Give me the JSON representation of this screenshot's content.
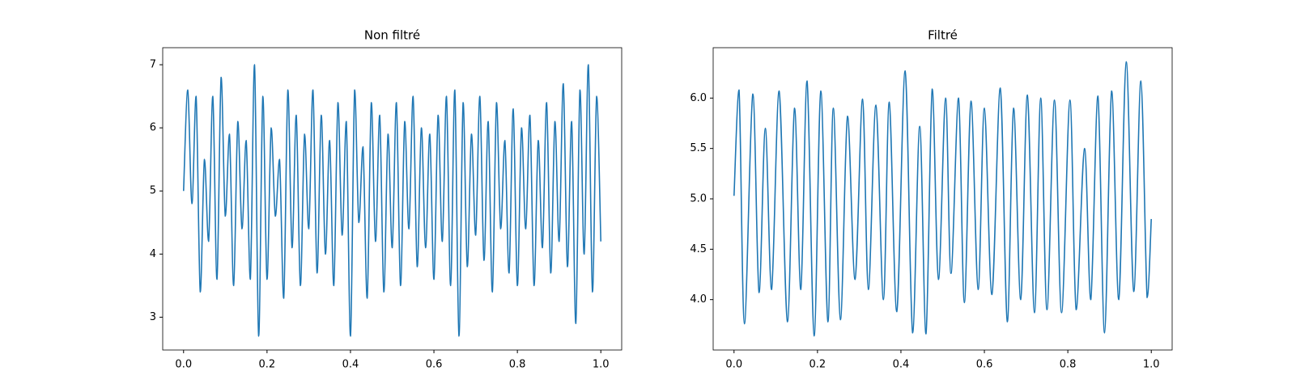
{
  "chart_data": [
    {
      "type": "line",
      "title": "Non filtré",
      "color": "#1f77b4",
      "x": [
        0,
        0.01,
        0.02,
        0.03,
        0.04,
        0.05,
        0.06,
        0.07,
        0.08,
        0.09,
        0.1,
        0.11,
        0.12,
        0.13,
        0.14,
        0.15,
        0.16,
        0.17,
        0.18,
        0.19,
        0.2,
        0.21,
        0.22,
        0.23,
        0.24,
        0.25,
        0.26,
        0.27,
        0.28,
        0.29,
        0.3,
        0.31,
        0.32,
        0.33,
        0.34,
        0.35,
        0.36,
        0.37,
        0.38,
        0.39,
        0.4,
        0.41,
        0.42,
        0.43,
        0.44,
        0.45,
        0.46,
        0.47,
        0.48,
        0.49,
        0.5,
        0.51,
        0.52,
        0.53,
        0.54,
        0.55,
        0.56,
        0.57,
        0.58,
        0.59,
        0.6,
        0.61,
        0.62,
        0.63,
        0.64,
        0.65,
        0.66,
        0.67,
        0.68,
        0.69,
        0.7,
        0.71,
        0.72,
        0.73,
        0.74,
        0.75,
        0.76,
        0.77,
        0.78,
        0.79,
        0.8,
        0.81,
        0.82,
        0.83,
        0.84,
        0.85,
        0.86,
        0.87,
        0.88,
        0.89,
        0.9,
        0.91,
        0.92,
        0.93,
        0.94,
        0.95,
        0.96,
        0.97,
        0.98,
        0.99,
        1.0
      ],
      "values": [
        5.0,
        6.6,
        4.8,
        6.5,
        3.4,
        5.5,
        4.2,
        6.5,
        3.6,
        6.8,
        4.6,
        5.9,
        3.5,
        6.1,
        4.4,
        5.8,
        3.6,
        7.0,
        2.7,
        6.5,
        3.6,
        6.0,
        4.6,
        5.5,
        3.3,
        6.6,
        4.1,
        6.2,
        3.5,
        5.9,
        4.4,
        6.6,
        3.7,
        6.2,
        4.0,
        5.8,
        3.5,
        6.4,
        4.3,
        6.1,
        2.7,
        6.6,
        4.5,
        5.7,
        3.3,
        6.4,
        4.2,
        6.2,
        3.4,
        5.9,
        4.1,
        6.4,
        3.5,
        6.1,
        4.4,
        6.5,
        3.8,
        6.0,
        4.1,
        5.9,
        3.6,
        6.2,
        4.2,
        6.5,
        3.5,
        6.6,
        2.7,
        6.4,
        3.8,
        5.9,
        4.3,
        6.5,
        3.9,
        6.1,
        3.4,
        6.4,
        4.4,
        5.8,
        3.7,
        6.3,
        3.5,
        6.0,
        4.4,
        6.2,
        3.5,
        5.8,
        4.1,
        6.4,
        3.7,
        6.1,
        4.2,
        6.7,
        3.8,
        6.1,
        2.9,
        6.6,
        4.0,
        7.0,
        3.4,
        6.5,
        4.2
      ],
      "xlim": [
        -0.05,
        1.05
      ],
      "ylim": [
        2.48,
        7.27
      ],
      "xticks": [
        {
          "value": 0,
          "label": "0.0"
        },
        {
          "value": 0.2,
          "label": "0.2"
        },
        {
          "value": 0.4,
          "label": "0.4"
        },
        {
          "value": 0.6,
          "label": "0.6"
        },
        {
          "value": 0.8,
          "label": "0.8"
        },
        {
          "value": 1,
          "label": "1.0"
        }
      ],
      "yticks": [
        3,
        4,
        5,
        6,
        7
      ]
    },
    {
      "type": "line",
      "title": "Filtré",
      "color": "#1f77b4",
      "x": [
        0,
        0.012,
        0.025,
        0.045,
        0.06,
        0.075,
        0.09,
        0.108,
        0.128,
        0.145,
        0.16,
        0.175,
        0.192,
        0.208,
        0.225,
        0.238,
        0.255,
        0.272,
        0.29,
        0.308,
        0.322,
        0.34,
        0.358,
        0.372,
        0.39,
        0.41,
        0.428,
        0.445,
        0.46,
        0.475,
        0.49,
        0.507,
        0.52,
        0.538,
        0.552,
        0.568,
        0.585,
        0.6,
        0.618,
        0.638,
        0.655,
        0.67,
        0.687,
        0.703,
        0.72,
        0.735,
        0.75,
        0.768,
        0.785,
        0.805,
        0.82,
        0.84,
        0.855,
        0.872,
        0.888,
        0.905,
        0.922,
        0.94,
        0.958,
        0.975,
        0.99,
        1.0
      ],
      "values": [
        5.03,
        6.08,
        3.76,
        6.04,
        4.07,
        5.7,
        4.1,
        6.07,
        3.78,
        5.9,
        4.1,
        6.17,
        3.64,
        6.07,
        3.78,
        5.9,
        3.8,
        5.82,
        4.2,
        5.99,
        4.1,
        5.93,
        4.0,
        5.96,
        3.88,
        6.27,
        3.67,
        5.72,
        3.66,
        6.09,
        4.2,
        6.0,
        4.26,
        6.0,
        3.97,
        5.97,
        4.1,
        5.9,
        4.05,
        6.1,
        3.78,
        5.9,
        4.0,
        6.03,
        3.87,
        6.0,
        3.9,
        5.98,
        3.87,
        5.98,
        3.9,
        5.5,
        4.0,
        6.02,
        3.67,
        6.07,
        4.0,
        6.36,
        4.08,
        6.17,
        4.02,
        4.8
      ],
      "xlim": [
        -0.05,
        1.05
      ],
      "ylim": [
        3.5,
        6.5
      ],
      "xticks": [
        {
          "value": 0,
          "label": "0.0"
        },
        {
          "value": 0.2,
          "label": "0.2"
        },
        {
          "value": 0.4,
          "label": "0.4"
        },
        {
          "value": 0.6,
          "label": "0.6"
        },
        {
          "value": 0.8,
          "label": "0.8"
        },
        {
          "value": 1,
          "label": "1.0"
        }
      ],
      "yticks": [
        {
          "value": 4,
          "label": "4.0"
        },
        {
          "value": 4.5,
          "label": "4.5"
        },
        {
          "value": 5,
          "label": "5.0"
        },
        {
          "value": 5.5,
          "label": "5.5"
        },
        {
          "value": 6,
          "label": "6.0"
        }
      ]
    }
  ]
}
